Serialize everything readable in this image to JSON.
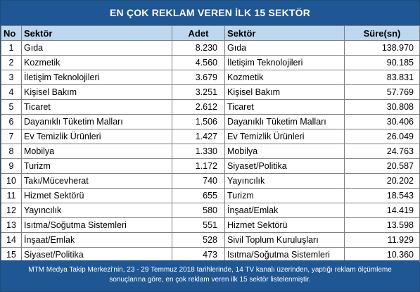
{
  "title": "EN ÇOK REKLAM VEREN İLK 15 SEKTÖR",
  "headers": {
    "no": "No",
    "sektor_left": "Sektör",
    "adet": "Adet",
    "sektor_right": "Sektör",
    "sure": "Süre(sn)"
  },
  "rows": [
    {
      "no": "1",
      "sektor_adet": "Gıda",
      "adet": "8.230",
      "sektor_sure": "Gıda",
      "sure": "138.970"
    },
    {
      "no": "2",
      "sektor_adet": "Kozmetik",
      "adet": "4.560",
      "sektor_sure": "İletişim Teknolojileri",
      "sure": "90.185"
    },
    {
      "no": "3",
      "sektor_adet": "İletişim Teknolojileri",
      "adet": "3.679",
      "sektor_sure": "Kozmetik",
      "sure": "83.831"
    },
    {
      "no": "4",
      "sektor_adet": "Kişisel Bakım",
      "adet": "3.251",
      "sektor_sure": "Kişisel Bakım",
      "sure": "57.769"
    },
    {
      "no": "5",
      "sektor_adet": "Ticaret",
      "adet": "2.612",
      "sektor_sure": "Ticaret",
      "sure": "30.808"
    },
    {
      "no": "6",
      "sektor_adet": "Dayanıklı Tüketim Malları",
      "adet": "1.506",
      "sektor_sure": "Dayanıklı Tüketim Malları",
      "sure": "30.406"
    },
    {
      "no": "7",
      "sektor_adet": "Ev Temizlik Ürünleri",
      "adet": "1.427",
      "sektor_sure": "Ev Temizlik Ürünleri",
      "sure": "26.049"
    },
    {
      "no": "8",
      "sektor_adet": "Mobilya",
      "adet": "1.330",
      "sektor_sure": "Mobilya",
      "sure": "24.763"
    },
    {
      "no": "9",
      "sektor_adet": "Turizm",
      "adet": "1.172",
      "sektor_sure": "Siyaset/Politika",
      "sure": "20.587"
    },
    {
      "no": "10",
      "sektor_adet": "Takı/Mücevherat",
      "adet": "740",
      "sektor_sure": "Yayıncılık",
      "sure": "20.202"
    },
    {
      "no": "11",
      "sektor_adet": "Hizmet Sektörü",
      "adet": "655",
      "sektor_sure": "Turizm",
      "sure": "18.543"
    },
    {
      "no": "12",
      "sektor_adet": "Yayıncılık",
      "adet": "580",
      "sektor_sure": "İnşaat/Emlak",
      "sure": "14.419"
    },
    {
      "no": "13",
      "sektor_adet": "Isıtma/Soğutma Sistemleri",
      "adet": "551",
      "sektor_sure": "Hizmet Sektörü",
      "sure": "13.598"
    },
    {
      "no": "14",
      "sektor_adet": "İnşaat/Emlak",
      "adet": "528",
      "sektor_sure": "Sivil Toplum Kuruluşları",
      "sure": "11.929"
    },
    {
      "no": "15",
      "sektor_adet": "Siyaset/Politika",
      "adet": "473",
      "sektor_sure": "Isıtma/Soğutma Sistemleri",
      "sure": "10.360"
    }
  ],
  "footer": {
    "line1": "MTM Medya Takip Merkezi'nin,  23 - 29 Temmuz 2018 tarihlerinde, 14 TV kanalı üzerinden,  yaptığı reklam ölçümleme",
    "line2": "sonuçlarına göre, en çok reklam veren ilk 15 sektör  listelenmiştir."
  },
  "colors": {
    "banner": "#1f5694",
    "header_fill": "#bdd7ee"
  }
}
